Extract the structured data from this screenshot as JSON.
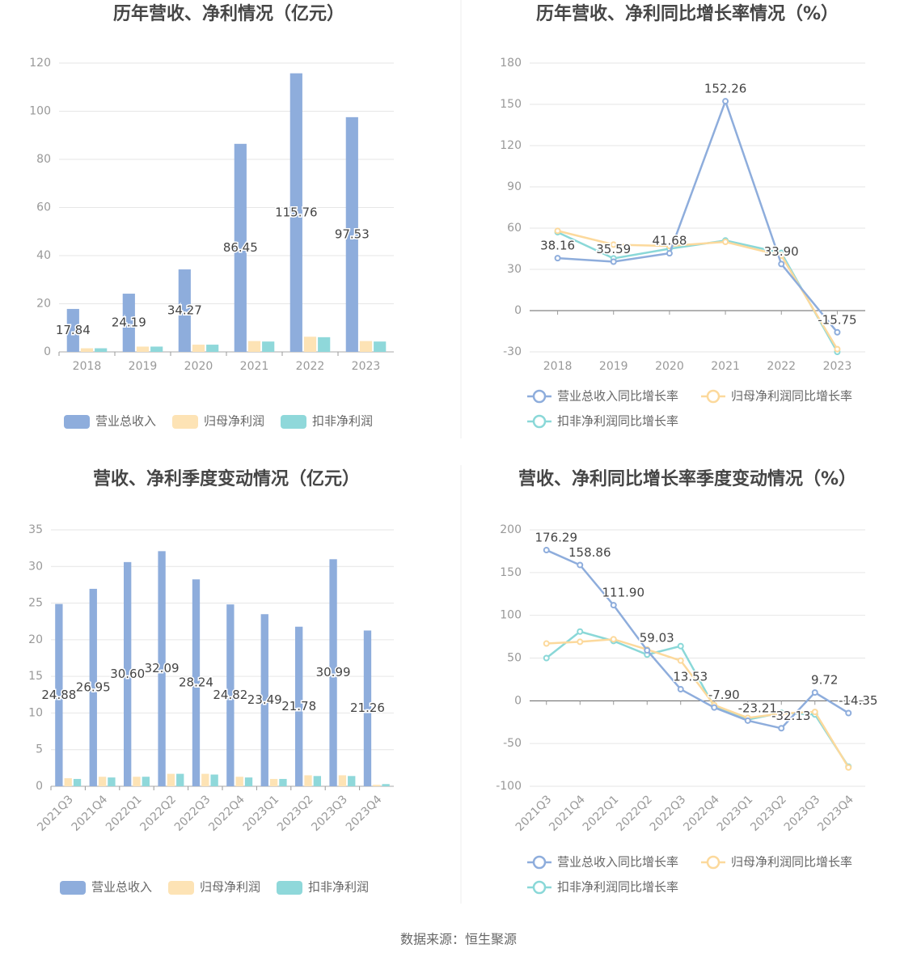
{
  "chart_data": [
    {
      "type": "bar",
      "title": "历年营收、净利情况（亿元）",
      "categories": [
        "2018",
        "2019",
        "2020",
        "2021",
        "2022",
        "2023"
      ],
      "series": [
        {
          "name": "营业总收入",
          "color": "#8eaddc",
          "values": [
            17.84,
            24.19,
            34.27,
            86.45,
            115.76,
            97.53
          ],
          "value_labels": [
            "17.84",
            "24.19",
            "34.27",
            "86.45",
            "115.76",
            "97.53"
          ],
          "show_labels": true
        },
        {
          "name": "归母净利润",
          "color": "#fde3b5",
          "values": [
            1.5,
            2.2,
            3.0,
            4.5,
            6.3,
            4.5
          ]
        },
        {
          "name": "扣非净利润",
          "color": "#8fd8da",
          "values": [
            1.5,
            2.2,
            3.0,
            4.3,
            6.1,
            4.3
          ]
        }
      ],
      "ylim": [
        0,
        120
      ],
      "yticks": [
        0,
        20,
        40,
        60,
        80,
        100,
        120
      ],
      "grid": true
    },
    {
      "type": "line",
      "title": "历年营收、净利同比增长率情况（%）",
      "categories": [
        "2018",
        "2019",
        "2020",
        "2021",
        "2022",
        "2023"
      ],
      "series": [
        {
          "name": "营业总收入同比增长率",
          "color": "#8eaddc",
          "values": [
            38.16,
            35.59,
            41.68,
            152.26,
            33.9,
            -15.75
          ],
          "value_labels": [
            "38.16",
            "35.59",
            "41.68",
            "152.26",
            "33.90",
            "-15.75"
          ],
          "show_labels": true
        },
        {
          "name": "归母净利润同比增长率",
          "color": "#fcd99c",
          "values": [
            58,
            48,
            47,
            50,
            40,
            -28
          ]
        },
        {
          "name": "扣非净利润同比增长率",
          "color": "#8ad8d8",
          "values": [
            57,
            38,
            45,
            51,
            42,
            -30
          ]
        }
      ],
      "ylim": [
        -30,
        180
      ],
      "yticks": [
        -30,
        0,
        30,
        60,
        90,
        120,
        150,
        180
      ],
      "grid": true
    },
    {
      "type": "bar",
      "title": "营收、净利季度变动情况（亿元）",
      "categories": [
        "2021Q3",
        "2021Q4",
        "2022Q1",
        "2022Q2",
        "2022Q3",
        "2022Q4",
        "2023Q1",
        "2023Q2",
        "2023Q3",
        "2023Q4"
      ],
      "series": [
        {
          "name": "营业总收入",
          "color": "#8eaddc",
          "values": [
            24.88,
            26.95,
            30.6,
            32.09,
            28.24,
            24.82,
            23.49,
            21.78,
            30.99,
            21.26
          ],
          "value_labels": [
            "24.88",
            "26.95",
            "30.60",
            "32.09",
            "28.24",
            "24.82",
            "23.49",
            "21.78",
            "30.99",
            "21.26"
          ],
          "show_labels": true
        },
        {
          "name": "归母净利润",
          "color": "#fde3b5",
          "values": [
            1.1,
            1.3,
            1.3,
            1.7,
            1.7,
            1.3,
            1.0,
            1.5,
            1.5,
            0.2
          ]
        },
        {
          "name": "扣非净利润",
          "color": "#8fd8da",
          "values": [
            1.0,
            1.2,
            1.3,
            1.7,
            1.6,
            1.2,
            1.0,
            1.4,
            1.4,
            0.3
          ]
        }
      ],
      "ylim": [
        0,
        35
      ],
      "yticks": [
        0,
        5,
        10,
        15,
        20,
        25,
        30,
        35
      ],
      "grid": true
    },
    {
      "type": "line",
      "title": "营收、净利同比增长率季度变动情况（%）",
      "categories": [
        "2021Q3",
        "2021Q4",
        "2022Q1",
        "2022Q2",
        "2022Q3",
        "2022Q4",
        "2023Q1",
        "2023Q2",
        "2023Q3",
        "2023Q4"
      ],
      "series": [
        {
          "name": "营业总收入同比增长率",
          "color": "#8eaddc",
          "values": [
            176.29,
            158.86,
            111.9,
            59.03,
            13.53,
            -7.9,
            -23.21,
            -32.13,
            9.72,
            -14.35
          ],
          "value_labels": [
            "176.29",
            "158.86",
            "111.90",
            "59.03",
            "13.53",
            "-7.90",
            "-23.21",
            "-32.13",
            "9.72",
            "-14.35"
          ],
          "show_labels": true
        },
        {
          "name": "归母净利润同比增长率",
          "color": "#fcd99c",
          "values": [
            67,
            69,
            72,
            60,
            47,
            -5,
            -20,
            -15,
            -13,
            -78
          ]
        },
        {
          "name": "扣非净利润同比增长率",
          "color": "#8ad8d8",
          "values": [
            50,
            81,
            70,
            54,
            64,
            -7,
            -22,
            -14,
            -16,
            -77
          ]
        }
      ],
      "ylim": [
        -100,
        200
      ],
      "yticks": [
        -100,
        -50,
        0,
        50,
        100,
        150,
        200
      ],
      "grid": true
    }
  ],
  "source": "数据来源：恒生聚源"
}
